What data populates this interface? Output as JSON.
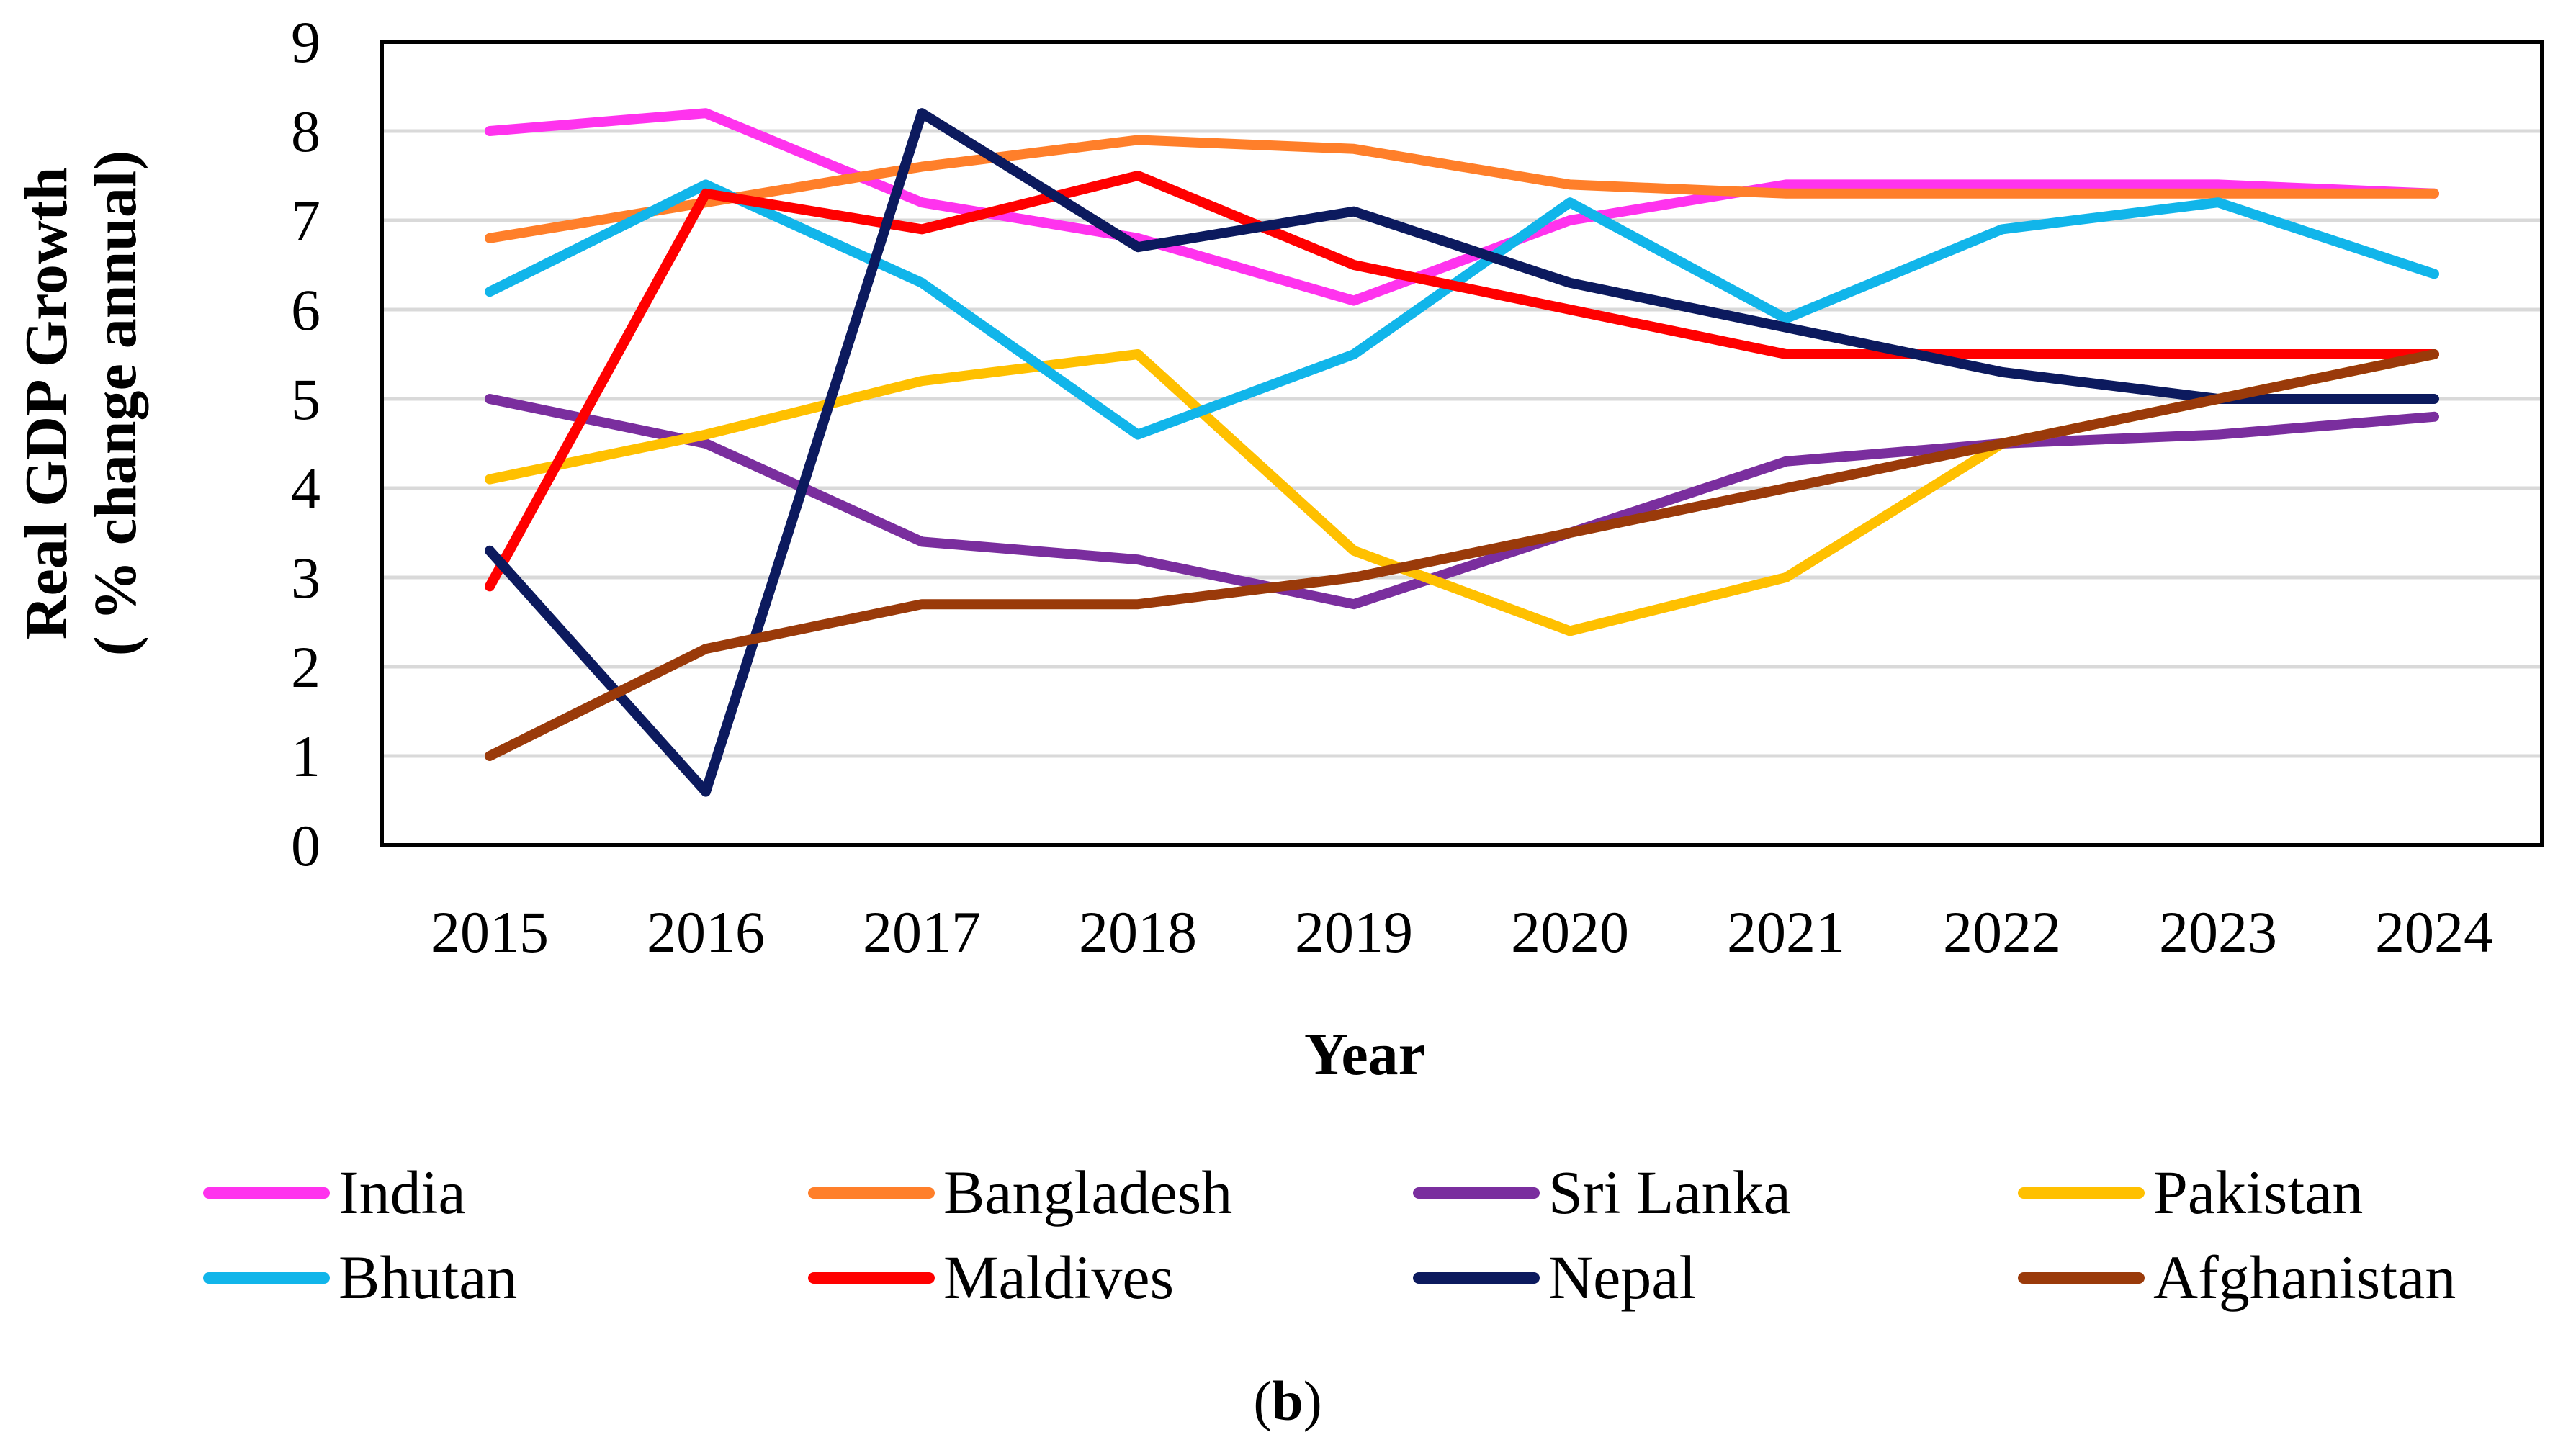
{
  "chart_data": {
    "type": "line",
    "title": "",
    "xlabel": "Year",
    "ylabel_line1": "Real GDP Growth",
    "ylabel_line2": "( % change annual)",
    "ylim": [
      0,
      9
    ],
    "yticks": [
      "0",
      "1",
      "2",
      "3",
      "4",
      "5",
      "6",
      "7",
      "8",
      "9"
    ],
    "grid": true,
    "legend_position": "bottom",
    "categories": [
      "2015",
      "2016",
      "2017",
      "2018",
      "2019",
      "2020",
      "2021",
      "2022",
      "2023",
      "2024"
    ],
    "series": [
      {
        "name": "India",
        "color": "#ff33ee",
        "values": [
          8.0,
          8.2,
          7.2,
          6.8,
          6.1,
          7.0,
          7.4,
          7.4,
          7.4,
          7.3
        ]
      },
      {
        "name": "Bangladesh",
        "color": "#ff7f2a",
        "values": [
          6.8,
          7.2,
          7.6,
          7.9,
          7.8,
          7.4,
          7.3,
          7.3,
          7.3,
          7.3
        ]
      },
      {
        "name": "Sri Lanka",
        "color": "#7a2e9e",
        "values": [
          5.0,
          4.5,
          3.4,
          3.2,
          2.7,
          3.5,
          4.3,
          4.5,
          4.6,
          4.8
        ]
      },
      {
        "name": "Pakistan",
        "color": "#ffc000",
        "values": [
          4.1,
          4.6,
          5.2,
          5.5,
          3.3,
          2.4,
          3.0,
          4.5,
          5.0,
          5.5
        ]
      },
      {
        "name": "Bhutan",
        "color": "#11b5ea",
        "values": [
          6.2,
          7.4,
          6.3,
          4.6,
          5.5,
          7.2,
          5.9,
          6.9,
          7.2,
          6.4
        ]
      },
      {
        "name": "Maldives",
        "color": "#ff0000",
        "values": [
          2.9,
          7.3,
          6.9,
          7.5,
          6.5,
          6.0,
          5.5,
          5.5,
          5.5,
          5.5
        ]
      },
      {
        "name": "Nepal",
        "color": "#0c1a5e",
        "values": [
          3.3,
          0.6,
          8.2,
          6.7,
          7.1,
          6.3,
          5.8,
          5.3,
          5.0,
          5.0
        ]
      },
      {
        "name": "Afghanistan",
        "color": "#9a3a0a",
        "values": [
          1.0,
          2.2,
          2.7,
          2.7,
          3.0,
          3.5,
          4.0,
          4.5,
          5.0,
          5.5
        ]
      }
    ]
  },
  "caption": {
    "open": "(",
    "letter": "b",
    "close": ")"
  }
}
